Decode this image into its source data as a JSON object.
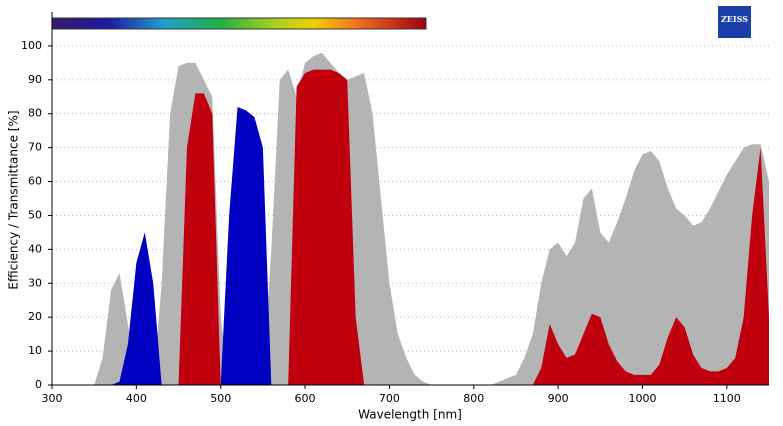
{
  "chart_data": {
    "type": "area",
    "x_label": "Wavelength [nm]",
    "y_label": "Efficiency / Transmittance [%]",
    "xlim": [
      300,
      1150
    ],
    "ylim": [
      0,
      110
    ],
    "xticks": [
      300,
      400,
      500,
      600,
      700,
      800,
      900,
      1000,
      1100
    ],
    "yticks": [
      0,
      10,
      20,
      30,
      40,
      50,
      60,
      70,
      80,
      90,
      100
    ],
    "grid": true,
    "x": [
      340,
      350,
      360,
      370,
      380,
      390,
      400,
      410,
      420,
      430,
      440,
      450,
      460,
      470,
      480,
      490,
      500,
      510,
      520,
      530,
      540,
      550,
      560,
      570,
      580,
      590,
      600,
      610,
      620,
      630,
      640,
      650,
      660,
      670,
      680,
      690,
      700,
      710,
      720,
      730,
      740,
      750,
      760,
      770,
      780,
      790,
      800,
      810,
      820,
      830,
      840,
      850,
      860,
      870,
      880,
      890,
      900,
      910,
      920,
      930,
      940,
      950,
      960,
      970,
      980,
      990,
      1000,
      1010,
      1020,
      1030,
      1040,
      1050,
      1060,
      1070,
      1080,
      1090,
      1100,
      1110,
      1120,
      1130,
      1140,
      1150
    ],
    "series": [
      {
        "color": "#b4b4b4",
        "values": [
          0,
          0,
          8,
          28,
          33,
          18,
          2,
          0,
          0,
          30,
          80,
          94,
          95,
          95,
          90,
          85,
          20,
          0,
          0,
          0,
          0,
          0,
          40,
          90,
          93,
          85,
          95,
          97,
          98,
          95,
          92,
          90,
          91,
          92,
          80,
          55,
          30,
          15,
          8,
          3,
          1,
          0,
          0,
          0,
          0,
          0,
          0,
          0,
          0,
          1,
          2,
          3,
          8,
          15,
          30,
          40,
          42,
          38,
          42,
          55,
          58,
          45,
          42,
          48,
          55,
          63,
          68,
          69,
          66,
          58,
          52,
          50,
          47,
          48,
          52,
          57,
          62,
          66,
          70,
          71,
          71,
          60
        ]
      },
      {
        "color": "#0000c0",
        "values": [
          0,
          0,
          0,
          0,
          1,
          12,
          36,
          45,
          30,
          0,
          0,
          0,
          0,
          0,
          0,
          0,
          0,
          50,
          82,
          81,
          79,
          70,
          0,
          0,
          0,
          0,
          0,
          0,
          0,
          0,
          0,
          0,
          0,
          0,
          0,
          0,
          0,
          0,
          0,
          0,
          0,
          0,
          0,
          0,
          0,
          0,
          0,
          0,
          0,
          0,
          0,
          0,
          0,
          0,
          0,
          0,
          0,
          0,
          0,
          0,
          0,
          0,
          0,
          0,
          0,
          0,
          0,
          0,
          0,
          0,
          0,
          0,
          0,
          0,
          0,
          0,
          0,
          0,
          0,
          0,
          0,
          0
        ]
      },
      {
        "color": "#c0000f",
        "values": [
          0,
          0,
          0,
          0,
          0,
          0,
          0,
          0,
          0,
          0,
          0,
          0,
          70,
          86,
          86,
          80,
          0,
          0,
          0,
          0,
          0,
          0,
          0,
          0,
          0,
          88,
          92,
          93,
          93,
          93,
          92,
          90,
          20,
          0,
          0,
          0,
          0,
          0,
          0,
          0,
          0,
          0,
          0,
          0,
          0,
          0,
          0,
          0,
          0,
          0,
          0,
          0,
          0,
          0,
          5,
          18,
          12,
          8,
          9,
          15,
          21,
          20,
          12,
          7,
          4,
          3,
          3,
          3,
          6,
          14,
          20,
          17,
          9,
          5,
          4,
          4,
          5,
          8,
          20,
          50,
          70,
          20
        ]
      }
    ]
  },
  "logo": "ZEISS"
}
